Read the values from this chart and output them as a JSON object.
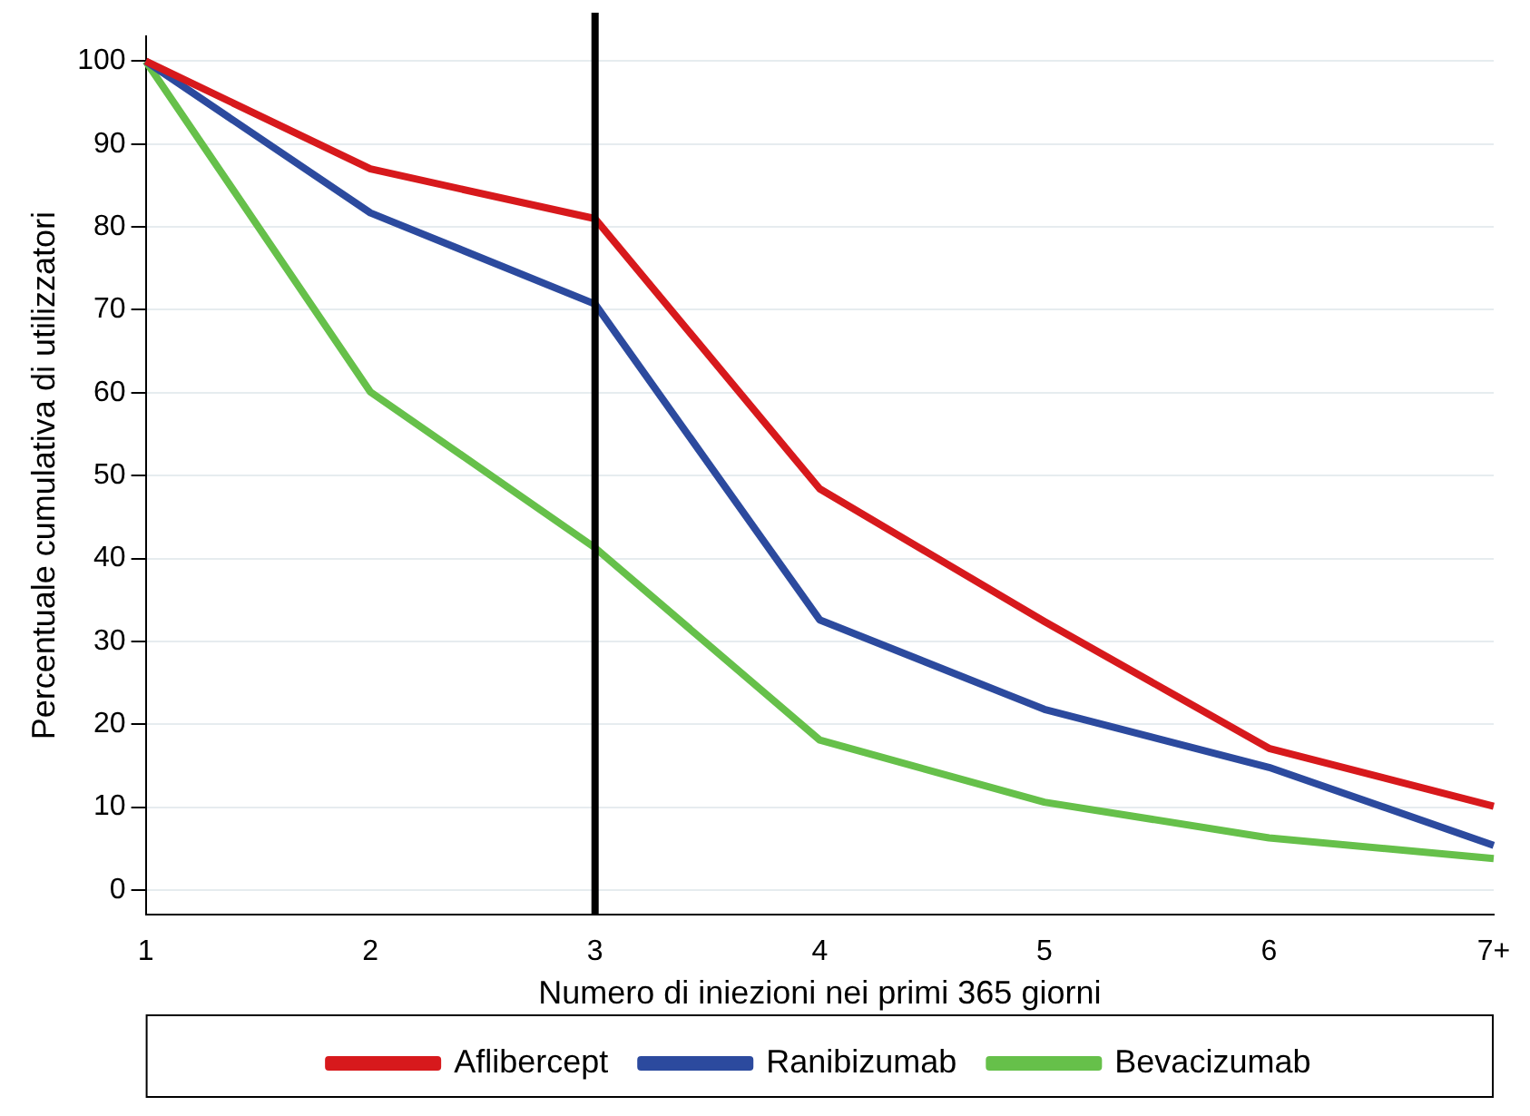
{
  "chart_data": {
    "type": "line",
    "xlabel": "Numero di iniezioni nei primi 365 giorni",
    "ylabel": "Percentuale cumulativa di utilizzatori",
    "categories": [
      "1",
      "2",
      "3",
      "4",
      "5",
      "6",
      "7+"
    ],
    "series": [
      {
        "name": "Aflibercept",
        "color": "#d7191c",
        "values": [
          100,
          87,
          81,
          48.4,
          32.4,
          17.1,
          10.1
        ]
      },
      {
        "name": "Ranibizumab",
        "color": "#2c4a9e",
        "values": [
          100,
          81.7,
          70.7,
          32.6,
          21.8,
          14.8,
          5.4
        ]
      },
      {
        "name": "Bevacizumab",
        "color": "#66c04a",
        "values": [
          100,
          60.1,
          41.3,
          18.1,
          10.6,
          6.3,
          3.8
        ]
      }
    ],
    "ylim": [
      -3,
      103
    ],
    "yticks": [
      0,
      10,
      20,
      30,
      40,
      50,
      60,
      70,
      80,
      90,
      100
    ],
    "grid": "y",
    "legend": "bottom",
    "marker": "none",
    "line_style": "solid",
    "ref_lines": [
      {
        "axis": "x",
        "value": "3",
        "color": "#000000"
      }
    ]
  }
}
